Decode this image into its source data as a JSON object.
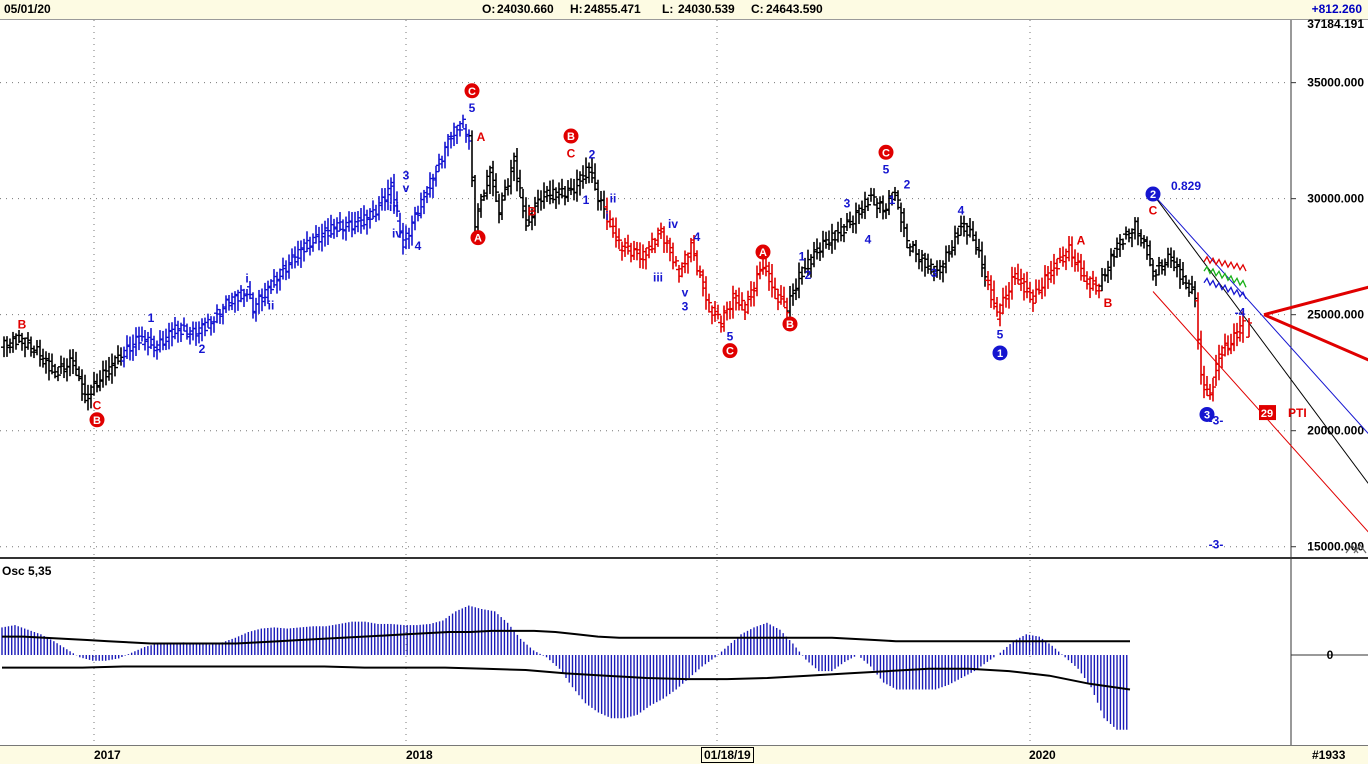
{
  "header": {
    "date": "05/01/20",
    "open_label": "O:",
    "open": "24030.660",
    "high_label": "H:",
    "high": "24855.471",
    "low_label": "L:",
    "low": "24030.539",
    "close_label": "C:",
    "close": "24643.590",
    "change": "+812.260"
  },
  "footer": {
    "x_labels": [
      "2017",
      "2018",
      "01/18/19",
      "2020"
    ],
    "bar_count": "#1933"
  },
  "colors": {
    "up_wave": "#1515d0",
    "down_wave": "#e00000",
    "neutral_bar": "#000000",
    "oscillator": "#1a1ab8",
    "forecast_arrow": "#e00000",
    "background": "#ffffff",
    "header_bg": "#fdfbe3"
  },
  "chart_data": [
    {
      "type": "ohlc",
      "title": "",
      "x_labels": [
        "2017",
        "2018",
        "01/18/19",
        "2020"
      ],
      "y_ticks": [
        "35000.000",
        "30000.000",
        "25000.000",
        "20000.000",
        "15000.000"
      ],
      "y_top_cut_label": "37184.191",
      "ylim": [
        14600,
        37700
      ],
      "grid": "dotted",
      "legend": "none",
      "last_bar": {
        "open": 24030.66,
        "high": 24855.471,
        "low": 24030.539,
        "close": 24643.59
      },
      "series": [
        {
          "color": "black",
          "path": [
            [
              0,
              23600
            ],
            [
              6,
              24000
            ],
            [
              12,
              23400
            ],
            [
              18,
              22500
            ],
            [
              24,
              23000
            ],
            [
              28,
              21400
            ],
            [
              34,
              22400
            ],
            [
              40,
              23200
            ]
          ]
        },
        {
          "color": "blue",
          "path": [
            [
              40,
              23200
            ],
            [
              46,
              24000
            ],
            [
              52,
              23600
            ],
            [
              58,
              24400
            ],
            [
              64,
              24200
            ],
            [
              70,
              24700
            ],
            [
              76,
              25600
            ],
            [
              82,
              26000
            ],
            [
              84,
              25300
            ],
            [
              92,
              26600
            ],
            [
              100,
              27800
            ],
            [
              110,
              28700
            ],
            [
              118,
              28900
            ],
            [
              124,
              29300
            ],
            [
              130,
              30500
            ],
            [
              134,
              28000
            ],
            [
              140,
              29800
            ],
            [
              146,
              31500
            ],
            [
              150,
              32800
            ],
            [
              154,
              33200
            ],
            [
              156,
              32500
            ]
          ]
        },
        {
          "color": "black",
          "path": [
            [
              156,
              32500
            ],
            [
              158,
              29000
            ],
            [
              163,
              31200
            ],
            [
              166,
              29500
            ],
            [
              171,
              31600
            ],
            [
              175,
              28900
            ],
            [
              180,
              30100
            ],
            [
              190,
              30300
            ],
            [
              196,
              31300
            ],
            [
              199,
              30100
            ],
            [
              201,
              29500
            ]
          ]
        },
        {
          "color": "red",
          "path": [
            [
              201,
              29500
            ],
            [
              206,
              28000
            ],
            [
              214,
              27500
            ],
            [
              220,
              28600
            ],
            [
              226,
              26800
            ],
            [
              230,
              28000
            ],
            [
              236,
              25300
            ],
            [
              240,
              24700
            ],
            [
              244,
              25700
            ],
            [
              248,
              25300
            ],
            [
              254,
              27200
            ],
            [
              258,
              25900
            ],
            [
              262,
              25300
            ]
          ]
        },
        {
          "color": "black",
          "path": [
            [
              262,
              25300
            ],
            [
              266,
              26600
            ],
            [
              272,
              27800
            ],
            [
              278,
              28400
            ],
            [
              284,
              29100
            ],
            [
              290,
              30100
            ],
            [
              294,
              29500
            ],
            [
              298,
              30300
            ],
            [
              302,
              28100
            ],
            [
              308,
              27200
            ],
            [
              312,
              26800
            ],
            [
              316,
              27700
            ],
            [
              320,
              28900
            ],
            [
              324,
              28400
            ],
            [
              328,
              26700
            ]
          ]
        },
        {
          "color": "red",
          "path": [
            [
              328,
              26700
            ],
            [
              332,
              25000
            ],
            [
              338,
              26700
            ],
            [
              344,
              25700
            ],
            [
              350,
              26900
            ],
            [
              356,
              27800
            ],
            [
              362,
              26400
            ],
            [
              366,
              26200
            ]
          ]
        },
        {
          "color": "black",
          "path": [
            [
              366,
              26200
            ],
            [
              372,
              28000
            ],
            [
              378,
              28800
            ],
            [
              382,
              27800
            ],
            [
              384,
              26800
            ],
            [
              390,
              27500
            ],
            [
              394,
              26500
            ],
            [
              398,
              25800
            ]
          ]
        },
        {
          "color": "red",
          "path": [
            [
              398,
              25800
            ],
            [
              400,
              22200
            ],
            [
              403,
              21500
            ],
            [
              406,
              23300
            ],
            [
              410,
              23800
            ],
            [
              414,
              24643
            ]
          ]
        }
      ],
      "wave_labels": [
        {
          "text": "B",
          "x": 6,
          "y": 24580,
          "color": "red"
        },
        {
          "text": "C",
          "x": 31,
          "y": 21080,
          "color": "red"
        },
        {
          "text": "B",
          "x": 31,
          "y": 20470,
          "color": "red",
          "circled": true
        },
        {
          "text": "1",
          "x": 49,
          "y": 24850,
          "color": "blue"
        },
        {
          "text": "2",
          "x": 66,
          "y": 23520,
          "color": "blue"
        },
        {
          "text": "i",
          "x": 81,
          "y": 26550,
          "color": "blue"
        },
        {
          "text": "ii",
          "x": 89,
          "y": 25400,
          "color": "blue"
        },
        {
          "text": "3",
          "x": 134,
          "y": 31000,
          "color": "blue"
        },
        {
          "text": "v",
          "x": 134,
          "y": 30450,
          "color": "blue"
        },
        {
          "text": "iii",
          "x": 130,
          "y": 29650,
          "color": "blue"
        },
        {
          "text": "iv",
          "x": 131,
          "y": 28500,
          "color": "blue"
        },
        {
          "text": "4",
          "x": 138,
          "y": 27950,
          "color": "blue"
        },
        {
          "text": "5",
          "x": 156,
          "y": 33900,
          "color": "blue"
        },
        {
          "text": "C",
          "x": 156,
          "y": 34650,
          "color": "red",
          "circled": true
        },
        {
          "text": "A",
          "x": 159,
          "y": 32650,
          "color": "red"
        },
        {
          "text": "A",
          "x": 158,
          "y": 28320,
          "color": "red",
          "circled": true
        },
        {
          "text": "B",
          "x": 176,
          "y": 29450,
          "color": "red"
        },
        {
          "text": "C",
          "x": 189,
          "y": 31950,
          "color": "red"
        },
        {
          "text": "B",
          "x": 189,
          "y": 32700,
          "color": "red",
          "circled": true
        },
        {
          "text": "2",
          "x": 196,
          "y": 31900,
          "color": "blue"
        },
        {
          "text": "1",
          "x": 194,
          "y": 29950,
          "color": "blue"
        },
        {
          "text": "ii",
          "x": 203,
          "y": 30000,
          "color": "blue"
        },
        {
          "text": "i",
          "x": 201,
          "y": 29250,
          "color": "blue"
        },
        {
          "text": "iv",
          "x": 223,
          "y": 28900,
          "color": "blue"
        },
        {
          "text": "4",
          "x": 231,
          "y": 28350,
          "color": "blue"
        },
        {
          "text": "iii",
          "x": 218,
          "y": 26600,
          "color": "blue"
        },
        {
          "text": "v",
          "x": 227,
          "y": 25950,
          "color": "blue"
        },
        {
          "text": "3",
          "x": 227,
          "y": 25350,
          "color": "blue"
        },
        {
          "text": "5",
          "x": 242,
          "y": 24050,
          "color": "blue"
        },
        {
          "text": "C",
          "x": 242,
          "y": 23450,
          "color": "red",
          "circled": true
        },
        {
          "text": "A",
          "x": 253,
          "y": 27700,
          "color": "red",
          "circled": true
        },
        {
          "text": "1",
          "x": 266,
          "y": 27500,
          "color": "blue"
        },
        {
          "text": "2",
          "x": 268,
          "y": 26700,
          "color": "blue"
        },
        {
          "text": "B",
          "x": 262,
          "y": 24600,
          "color": "red",
          "circled": true
        },
        {
          "text": "3",
          "x": 281,
          "y": 29800,
          "color": "blue"
        },
        {
          "text": "4",
          "x": 288,
          "y": 28250,
          "color": "blue"
        },
        {
          "text": "5",
          "x": 294,
          "y": 31250,
          "color": "blue"
        },
        {
          "text": "C",
          "x": 294,
          "y": 32000,
          "color": "red",
          "circled": true
        },
        {
          "text": "1",
          "x": 296,
          "y": 29950,
          "color": "blue"
        },
        {
          "text": "2",
          "x": 301,
          "y": 30600,
          "color": "blue"
        },
        {
          "text": "3",
          "x": 310,
          "y": 26800,
          "color": "blue"
        },
        {
          "text": "4",
          "x": 319,
          "y": 29500,
          "color": "blue"
        },
        {
          "text": "5",
          "x": 332,
          "y": 24150,
          "color": "blue"
        },
        {
          "text": "1",
          "x": 332,
          "y": 23350,
          "color": "blue",
          "circled": true
        },
        {
          "text": "A",
          "x": 359,
          "y": 28200,
          "color": "red"
        },
        {
          "text": "B",
          "x": 368,
          "y": 25500,
          "color": "red"
        },
        {
          "text": "C",
          "x": 383,
          "y": 29500,
          "color": "red"
        },
        {
          "text": "2",
          "x": 383,
          "y": 30200,
          "color": "blue",
          "circled": true
        },
        {
          "text": "3",
          "x": 401,
          "y": 20700,
          "color": "blue",
          "circled": true
        },
        {
          "text": "-3-",
          "x": 404,
          "y": 20450,
          "color": "blue"
        },
        {
          "text": "-4",
          "x": 412,
          "y": 25100,
          "color": "blue"
        },
        {
          "text": "-3-",
          "x": 404,
          "y": 15100,
          "color": "blue"
        }
      ],
      "annotations": [
        {
          "text": "0.829",
          "color": "blue",
          "x": 389,
          "y": 30550
        },
        {
          "text": "29",
          "color": "red",
          "boxed": true,
          "x": 421,
          "y": 20760
        },
        {
          "text": "PTI",
          "color": "red",
          "x": 428,
          "y": 20760
        }
      ],
      "channels": [
        {
          "color": "black",
          "from": [
            383,
            30200
          ],
          "to": [
            467,
            15600
          ]
        },
        {
          "color": "blue",
          "from": [
            383,
            30200
          ],
          "to": [
            473,
            17250
          ]
        },
        {
          "color": "red",
          "from": [
            383,
            26000
          ],
          "to": [
            455,
            15600
          ]
        }
      ],
      "projection_band": {
        "colors": [
          "red",
          "green",
          "blue"
        ],
        "x_start": 400,
        "x_end": 414,
        "y_start": [
          27400,
          27000,
          26500
        ],
        "y_end": [
          27000,
          26300,
          25800
        ]
      },
      "forecast_arrows": [
        {
          "from": [
            420,
            25000
          ],
          "to": [
            470,
            26700
          ]
        },
        {
          "from": [
            420,
            25000
          ],
          "to": [
            470,
            22200
          ]
        }
      ]
    },
    {
      "type": "bar",
      "title": "Osc 5,35",
      "y_ticks": [
        "0"
      ],
      "ylim": [
        -90,
        70
      ],
      "series": [
        {
          "name": "",
          "color": "blue",
          "values": [
            24,
            26,
            22,
            18,
            12,
            5,
            -2,
            -5,
            -5,
            -3,
            2,
            7,
            10,
            10,
            11,
            10,
            9,
            11,
            15,
            20,
            23,
            24,
            23,
            24,
            25,
            25,
            27,
            29,
            29,
            27,
            27,
            26,
            26,
            27,
            30,
            38,
            43,
            40,
            38,
            28,
            14,
            4,
            -2,
            -12,
            -28,
            -42,
            -50,
            -55,
            -55,
            -52,
            -44,
            -38,
            -30,
            -20,
            -10,
            -2,
            8,
            18,
            24,
            28,
            22,
            10,
            -4,
            -14,
            -14,
            -6,
            0,
            -10,
            -24,
            -30,
            -30,
            -30,
            -30,
            -26,
            -20,
            -14,
            -6,
            2,
            12,
            18,
            16,
            8,
            -2,
            -12,
            -28,
            -55,
            -65,
            -65
          ]
        },
        {
          "name": "",
          "color": "black",
          "line": true,
          "values": [
            16,
            16,
            15,
            14,
            13,
            12,
            11,
            10,
            10,
            10,
            10,
            10,
            11,
            12,
            13,
            14,
            15,
            16,
            17,
            18,
            19,
            20,
            20,
            21,
            21,
            21,
            20,
            18,
            16,
            15,
            15,
            15,
            15,
            15,
            15,
            15,
            15,
            15,
            15,
            15,
            14,
            13,
            12,
            12,
            12,
            12,
            12,
            12,
            12,
            12,
            12,
            12,
            12,
            12
          ]
        },
        {
          "name": "",
          "color": "black",
          "line": true,
          "values": [
            -11,
            -11,
            -11,
            -10,
            -10,
            -10,
            -10,
            -10,
            -10,
            -11,
            -11,
            -11,
            -12,
            -13,
            -16,
            -18,
            -20,
            -21,
            -21,
            -20,
            -18,
            -16,
            -14,
            -12,
            -12,
            -14,
            -18,
            -25,
            -30
          ]
        }
      ]
    }
  ]
}
